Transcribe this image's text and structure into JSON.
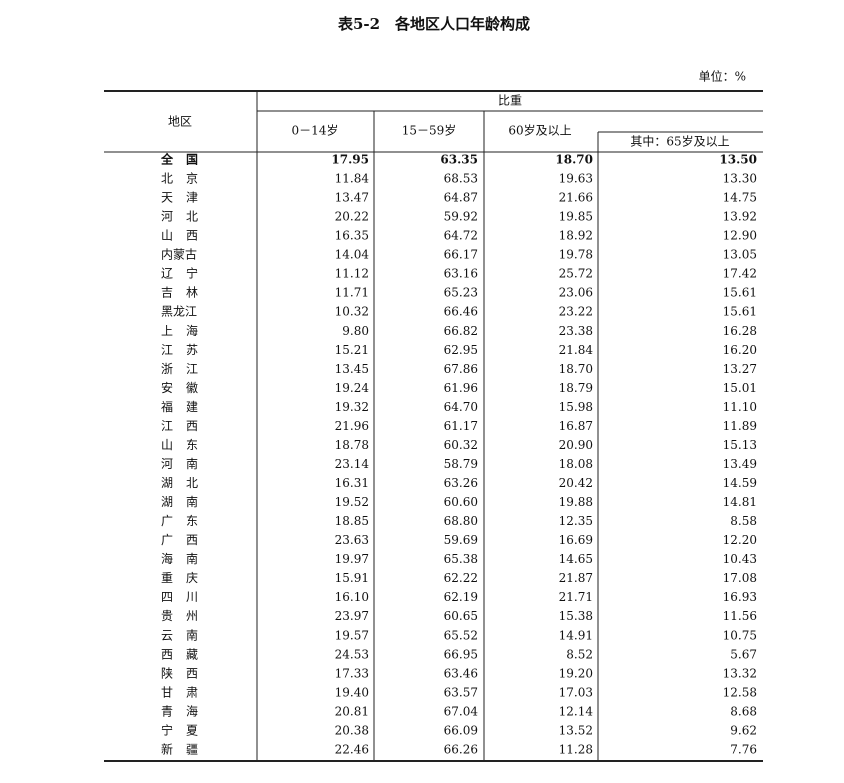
{
  "title": "表5-2　各地区人口年龄构成",
  "unit": "单位：%",
  "table": {
    "header": {
      "region": "地区",
      "ratio": "比重",
      "columns": [
        "0－14岁",
        "15－59岁",
        "60岁及以上"
      ],
      "sub": "其中：65岁及以上"
    },
    "rows": [
      [
        "全国",
        "17.95",
        "63.35",
        "18.70",
        "13.50"
      ],
      [
        "北京",
        "11.84",
        "68.53",
        "19.63",
        "13.30"
      ],
      [
        "天津",
        "13.47",
        "64.87",
        "21.66",
        "14.75"
      ],
      [
        "河北",
        "20.22",
        "59.92",
        "19.85",
        "13.92"
      ],
      [
        "山西",
        "16.35",
        "64.72",
        "18.92",
        "12.90"
      ],
      [
        "内蒙古",
        "14.04",
        "66.17",
        "19.78",
        "13.05"
      ],
      [
        "辽宁",
        "11.12",
        "63.16",
        "25.72",
        "17.42"
      ],
      [
        "吉林",
        "11.71",
        "65.23",
        "23.06",
        "15.61"
      ],
      [
        "黑龙江",
        "10.32",
        "66.46",
        "23.22",
        "15.61"
      ],
      [
        "上海",
        "9.80",
        "66.82",
        "23.38",
        "16.28"
      ],
      [
        "江苏",
        "15.21",
        "62.95",
        "21.84",
        "16.20"
      ],
      [
        "浙江",
        "13.45",
        "67.86",
        "18.70",
        "13.27"
      ],
      [
        "安徽",
        "19.24",
        "61.96",
        "18.79",
        "15.01"
      ],
      [
        "福建",
        "19.32",
        "64.70",
        "15.98",
        "11.10"
      ],
      [
        "江西",
        "21.96",
        "61.17",
        "16.87",
        "11.89"
      ],
      [
        "山东",
        "18.78",
        "60.32",
        "20.90",
        "15.13"
      ],
      [
        "河南",
        "23.14",
        "58.79",
        "18.08",
        "13.49"
      ],
      [
        "湖北",
        "16.31",
        "63.26",
        "20.42",
        "14.59"
      ],
      [
        "湖南",
        "19.52",
        "60.60",
        "19.88",
        "14.81"
      ],
      [
        "广东",
        "18.85",
        "68.80",
        "12.35",
        "8.58"
      ],
      [
        "广西",
        "23.63",
        "59.69",
        "16.69",
        "12.20"
      ],
      [
        "海南",
        "19.97",
        "65.38",
        "14.65",
        "10.43"
      ],
      [
        "重庆",
        "15.91",
        "62.22",
        "21.87",
        "17.08"
      ],
      [
        "四川",
        "16.10",
        "62.19",
        "21.71",
        "16.93"
      ],
      [
        "贵州",
        "23.97",
        "60.65",
        "15.38",
        "11.56"
      ],
      [
        "云南",
        "19.57",
        "65.52",
        "14.91",
        "10.75"
      ],
      [
        "西藏",
        "24.53",
        "66.95",
        "8.52",
        "5.67"
      ],
      [
        "陕西",
        "17.33",
        "63.46",
        "19.20",
        "13.32"
      ],
      [
        "甘肃",
        "19.40",
        "63.57",
        "17.03",
        "12.58"
      ],
      [
        "青海",
        "20.81",
        "67.04",
        "12.14",
        "8.68"
      ],
      [
        "宁夏",
        "20.38",
        "66.09",
        "13.52",
        "9.62"
      ],
      [
        "新疆",
        "22.46",
        "66.26",
        "11.28",
        "7.76"
      ]
    ]
  }
}
